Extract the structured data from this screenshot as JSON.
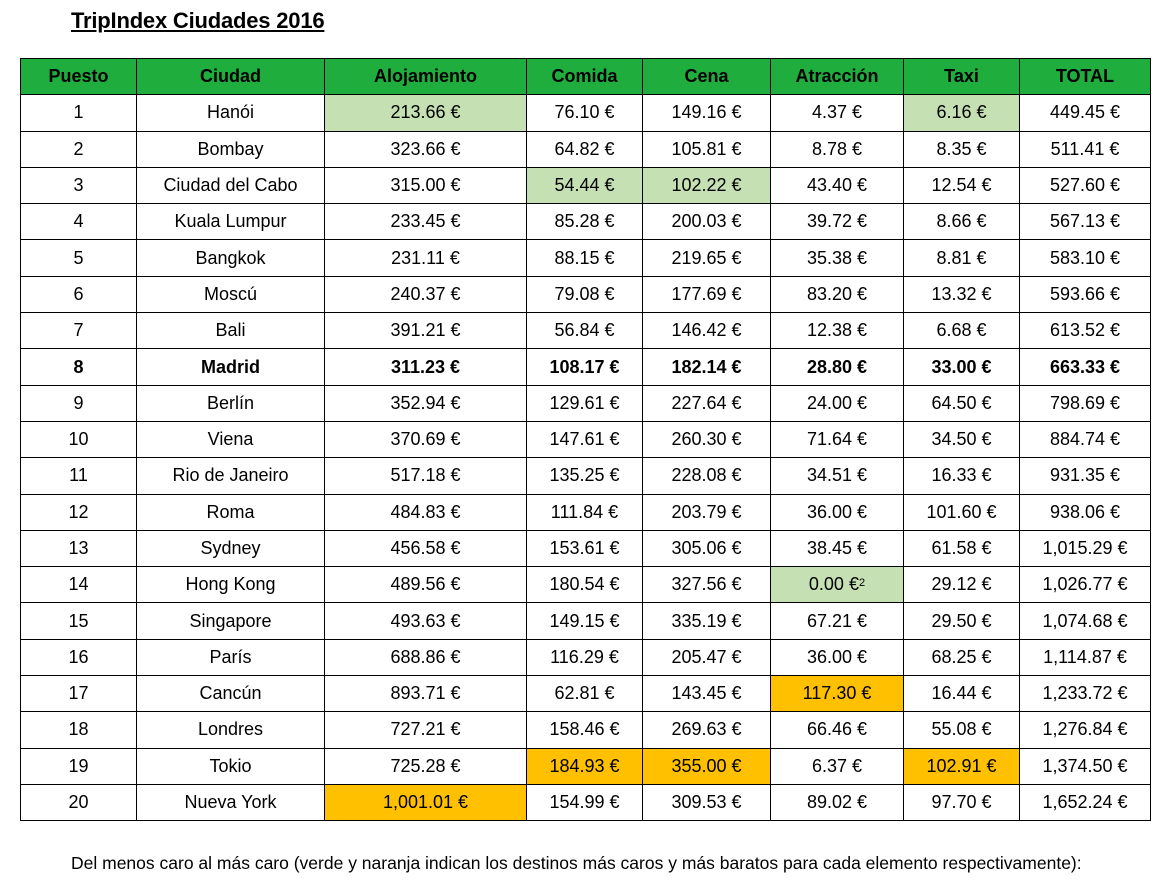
{
  "title": "TripIndex Ciudades 2016",
  "headers": [
    "Puesto",
    "Ciudad",
    "Alojamiento",
    "Comida",
    "Cena",
    "Atracción",
    "Taxi",
    "TOTAL"
  ],
  "rows": [
    {
      "cells": [
        "1",
        "Hanói",
        "213.66 €",
        "76.10 €",
        "149.16 €",
        "4.37 €",
        "6.16 €",
        "449.45 €"
      ],
      "hl": {
        "2": "g",
        "6": "g"
      }
    },
    {
      "cells": [
        "2",
        "Bombay",
        "323.66 €",
        "64.82 €",
        "105.81 €",
        "8.78 €",
        "8.35 €",
        "511.41 €"
      ],
      "hl": {}
    },
    {
      "cells": [
        "3",
        "Ciudad del Cabo",
        "315.00 €",
        "54.44 €",
        "102.22 €",
        "43.40 €",
        "12.54 €",
        "527.60 €"
      ],
      "hl": {
        "3": "g",
        "4": "g"
      }
    },
    {
      "cells": [
        "4",
        "Kuala Lumpur",
        "233.45 €",
        "85.28 €",
        "200.03 €",
        "39.72 €",
        "8.66 €",
        "567.13 €"
      ],
      "hl": {}
    },
    {
      "cells": [
        "5",
        "Bangkok",
        "231.11 €",
        "88.15 €",
        "219.65 €",
        "35.38 €",
        "8.81 €",
        "583.10 €"
      ],
      "hl": {}
    },
    {
      "cells": [
        "6",
        "Moscú",
        "240.37 €",
        "79.08 €",
        "177.69 €",
        "83.20 €",
        "13.32 €",
        "593.66 €"
      ],
      "hl": {}
    },
    {
      "cells": [
        "7",
        "Bali",
        "391.21 €",
        "56.84 €",
        "146.42 €",
        "12.38 €",
        "6.68 €",
        "613.52 €"
      ],
      "hl": {}
    },
    {
      "cells": [
        "8",
        "Madrid",
        "311.23 €",
        "108.17 €",
        "182.14 €",
        "28.80 €",
        "33.00 €",
        "663.33 €"
      ],
      "hl": {},
      "bold": true
    },
    {
      "cells": [
        "9",
        "Berlín",
        "352.94 €",
        "129.61 €",
        "227.64 €",
        "24.00 €",
        "64.50 €",
        "798.69 €"
      ],
      "hl": {}
    },
    {
      "cells": [
        "10",
        "Viena",
        "370.69 €",
        "147.61 €",
        "260.30 €",
        "71.64 €",
        "34.50 €",
        "884.74 €"
      ],
      "hl": {}
    },
    {
      "cells": [
        "11",
        "Rio de Janeiro",
        "517.18 €",
        "135.25 €",
        "228.08 €",
        "34.51 €",
        "16.33 €",
        "931.35 €"
      ],
      "hl": {}
    },
    {
      "cells": [
        "12",
        "Roma",
        "484.83 €",
        "111.84 €",
        "203.79 €",
        "36.00 €",
        "101.60 €",
        "938.06 €"
      ],
      "hl": {}
    },
    {
      "cells": [
        "13",
        "Sydney",
        "456.58 €",
        "153.61 €",
        "305.06 €",
        "38.45 €",
        "61.58 €",
        "1,015.29 €"
      ],
      "hl": {}
    },
    {
      "cells": [
        "14",
        "Hong Kong",
        "489.56 €",
        "180.54 €",
        "327.56 €",
        "0.00 €",
        "29.12 €",
        "1,026.77 €"
      ],
      "hl": {
        "5": "g"
      },
      "sup": {
        "5": "2"
      }
    },
    {
      "cells": [
        "15",
        "Singapore",
        "493.63 €",
        "149.15 €",
        "335.19 €",
        "67.21 €",
        "29.50 €",
        "1,074.68 €"
      ],
      "hl": {}
    },
    {
      "cells": [
        "16",
        "París",
        "688.86 €",
        "116.29 €",
        "205.47 €",
        "36.00 €",
        "68.25 €",
        "1,114.87 €"
      ],
      "hl": {}
    },
    {
      "cells": [
        "17",
        "Cancún",
        "893.71 €",
        "62.81 €",
        "143.45 €",
        "117.30 €",
        "16.44 €",
        "1,233.72 €"
      ],
      "hl": {
        "5": "o"
      }
    },
    {
      "cells": [
        "18",
        "Londres",
        "727.21 €",
        "158.46 €",
        "269.63 €",
        "66.46 €",
        "55.08 €",
        "1,276.84 €"
      ],
      "hl": {}
    },
    {
      "cells": [
        "19",
        "Tokio",
        "725.28 €",
        "184.93 €",
        "355.00 €",
        "6.37 €",
        "102.91 €",
        "1,374.50 €"
      ],
      "hl": {
        "3": "o",
        "4": "o",
        "6": "o"
      }
    },
    {
      "cells": [
        "20",
        "Nueva York",
        "1,001.01 €",
        "154.99 €",
        "309.53 €",
        "89.02 €",
        "97.70 €",
        "1,652.24 €"
      ],
      "hl": {
        "2": "o"
      }
    }
  ],
  "highlight_colors": {
    "green": "#c5e0b3",
    "orange": "#ffc000",
    "header": "#1fae3d"
  },
  "footnote": "Del menos caro al más caro (verde y naranja indican los destinos más caros y más baratos para cada elemento respectivamente):"
}
